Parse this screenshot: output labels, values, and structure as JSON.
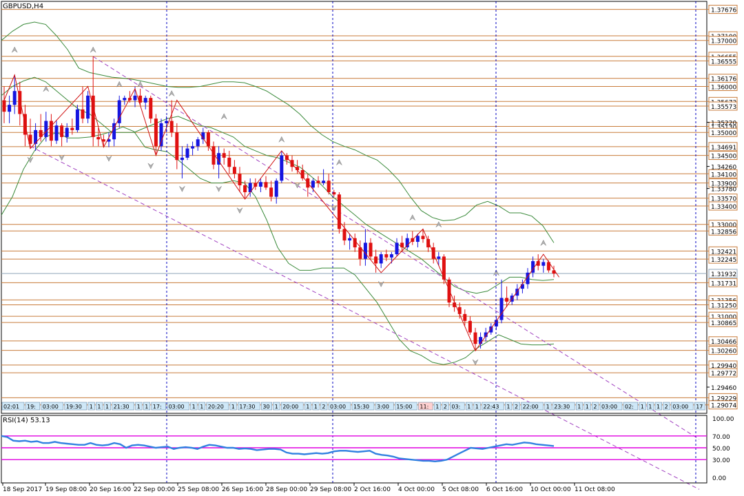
{
  "symbol_label": "GBPUSD,H4",
  "rsi_label": "RSI(14) 53.13",
  "price_axis": {
    "min": 1.2889,
    "max": 1.3785,
    "levels": [
      "1.37676",
      "1.37100",
      "1.37000",
      "1.36655",
      "1.36555",
      "1.36176",
      "1.36000",
      "1.35673",
      "1.35573",
      "1.35130",
      "1.35000",
      "1.34691",
      "1.34500",
      "1.34100",
      "1.33900",
      "1.33570",
      "1.33400",
      "1.33000",
      "1.32856",
      "1.32421",
      "1.32245",
      "1.31731",
      "1.31356",
      "1.31250",
      "1.31000",
      "1.30865",
      "1.30466",
      "1.30260",
      "1.29940",
      "1.29772",
      "1.29229",
      "1.29074"
    ],
    "plain_ticks": [
      "1.35220",
      "1.34260",
      "1.33780",
      "1.29460"
    ],
    "current_price": "1.31932"
  },
  "rsi_axis": {
    "ticks": [
      "100.00",
      "70.00",
      "50.00",
      "30.00",
      "0.00"
    ],
    "levels": [
      70,
      50,
      30
    ],
    "current": 53.13
  },
  "time_labels": [
    "18 Sep 2017",
    "19 Sep 08:00",
    "20 Sep 16:00",
    "22 Sep 00:00",
    "25 Sep 08:00",
    "26 Sep 16:00",
    "28 Sep 00:00",
    "29 Sep 08:00",
    "2 Oct 16:00",
    "4 Oct 00:00",
    "5 Oct 08:00",
    "6 Oct 16:00",
    "10 Oct 00:00",
    "11 Oct 08:00"
  ],
  "session_tags": [
    "02:01",
    "19:",
    "03:00",
    "19:30",
    "1",
    "1",
    "1",
    "21:30",
    "1",
    "1",
    "17:",
    "03:00",
    "1",
    "1",
    "20:20",
    "1",
    "17:30",
    "30",
    "1",
    "20:00",
    "1",
    "1",
    "2",
    "03:00",
    "15:30",
    "3:00",
    "15:00",
    "11:",
    "1",
    "2",
    "03:",
    "1",
    "1",
    "22:43",
    "1",
    "2",
    "22:00",
    "1",
    "23:30",
    "1",
    "1",
    "2",
    "03:00",
    "02:",
    "1",
    "1",
    "1",
    "2",
    "03:00",
    "17",
    "23:30",
    "15:30",
    "0",
    "22:30"
  ],
  "chart_data": {
    "type": "candlestick",
    "symbol": "GBPUSD",
    "timeframe": "H4",
    "colors": {
      "up": "#1515e0",
      "down": "#e01010",
      "zigzag": "#d01010",
      "bands": "#3a8a3a",
      "channel": "#a040c0",
      "levels": "#c87b3a",
      "rsi_line": "#3080e0",
      "rsi_levels": "#e000e0",
      "separator": "#0000c0"
    },
    "ohlc": [
      [
        1.357,
        1.36,
        1.352,
        1.3545
      ],
      [
        1.3545,
        1.358,
        1.352,
        1.356
      ],
      [
        1.356,
        1.3625,
        1.354,
        1.359
      ],
      [
        1.359,
        1.361,
        1.3515,
        1.354
      ],
      [
        1.354,
        1.356,
        1.347,
        1.3495
      ],
      [
        1.3495,
        1.353,
        1.3465,
        1.3475
      ],
      [
        1.3475,
        1.352,
        1.346,
        1.3505
      ],
      [
        1.3505,
        1.354,
        1.348,
        1.349
      ],
      [
        1.349,
        1.3545,
        1.348,
        1.3525
      ],
      [
        1.3525,
        1.354,
        1.347,
        1.3482
      ],
      [
        1.3482,
        1.3525,
        1.3475,
        1.3515
      ],
      [
        1.3515,
        1.352,
        1.347,
        1.349
      ],
      [
        1.349,
        1.352,
        1.3478,
        1.351
      ],
      [
        1.351,
        1.353,
        1.3495,
        1.3505
      ],
      [
        1.3505,
        1.356,
        1.35,
        1.355
      ],
      [
        1.355,
        1.36,
        1.352,
        1.353
      ],
      [
        1.353,
        1.359,
        1.352,
        1.358
      ],
      [
        1.358,
        1.3665,
        1.347,
        1.349
      ],
      [
        1.349,
        1.351,
        1.347,
        1.3485
      ],
      [
        1.3485,
        1.3495,
        1.347,
        1.348
      ],
      [
        1.348,
        1.35,
        1.3468,
        1.3485
      ],
      [
        1.3485,
        1.353,
        1.347,
        1.352
      ],
      [
        1.352,
        1.358,
        1.351,
        1.357
      ],
      [
        1.357,
        1.358,
        1.356,
        1.3575
      ],
      [
        1.3575,
        1.359,
        1.3565,
        1.357
      ],
      [
        1.357,
        1.36,
        1.3555,
        1.358
      ],
      [
        1.358,
        1.3595,
        1.356,
        1.3565
      ],
      [
        1.3565,
        1.358,
        1.355,
        1.3575
      ],
      [
        1.3575,
        1.358,
        1.352,
        1.353
      ],
      [
        1.353,
        1.354,
        1.345,
        1.347
      ],
      [
        1.347,
        1.353,
        1.346,
        1.352
      ],
      [
        1.352,
        1.3535,
        1.35,
        1.3525
      ],
      [
        1.3525,
        1.357,
        1.349,
        1.35
      ],
      [
        1.35,
        1.352,
        1.342,
        1.344
      ],
      [
        1.344,
        1.347,
        1.34,
        1.3445
      ],
      [
        1.3445,
        1.3475,
        1.344,
        1.3465
      ],
      [
        1.3465,
        1.348,
        1.345,
        1.347
      ],
      [
        1.347,
        1.349,
        1.346,
        1.3485
      ],
      [
        1.3485,
        1.351,
        1.3475,
        1.35
      ],
      [
        1.35,
        1.3505,
        1.346,
        1.347
      ],
      [
        1.347,
        1.348,
        1.342,
        1.343
      ],
      [
        1.343,
        1.347,
        1.34,
        1.3455
      ],
      [
        1.3455,
        1.3465,
        1.343,
        1.3445
      ],
      [
        1.3445,
        1.346,
        1.341,
        1.3425
      ],
      [
        1.3425,
        1.344,
        1.34,
        1.341
      ],
      [
        1.341,
        1.3425,
        1.337,
        1.3385
      ],
      [
        1.3385,
        1.3395,
        1.3355,
        1.337
      ],
      [
        1.337,
        1.34,
        1.336,
        1.339
      ],
      [
        1.339,
        1.34,
        1.3375,
        1.3382
      ],
      [
        1.3382,
        1.34,
        1.337,
        1.3392
      ],
      [
        1.3392,
        1.3405,
        1.3375,
        1.338
      ],
      [
        1.338,
        1.3395,
        1.335,
        1.336
      ],
      [
        1.336,
        1.34,
        1.3345,
        1.3395
      ],
      [
        1.3395,
        1.346,
        1.339,
        1.345
      ],
      [
        1.345,
        1.3455,
        1.343,
        1.344
      ],
      [
        1.344,
        1.345,
        1.3415,
        1.3425
      ],
      [
        1.3425,
        1.344,
        1.341,
        1.3418
      ],
      [
        1.3418,
        1.343,
        1.3395,
        1.34
      ],
      [
        1.34,
        1.341,
        1.336,
        1.338
      ],
      [
        1.338,
        1.34,
        1.337,
        1.3395
      ],
      [
        1.3395,
        1.3405,
        1.338,
        1.339
      ],
      [
        1.339,
        1.342,
        1.3385,
        1.3395
      ],
      [
        1.3395,
        1.341,
        1.3365,
        1.337
      ],
      [
        1.337,
        1.3375,
        1.336,
        1.3365
      ],
      [
        1.3365,
        1.337,
        1.328,
        1.329
      ],
      [
        1.329,
        1.3305,
        1.3255,
        1.3265
      ],
      [
        1.3265,
        1.328,
        1.3245,
        1.327
      ],
      [
        1.327,
        1.328,
        1.324,
        1.325
      ],
      [
        1.325,
        1.3265,
        1.321,
        1.3225
      ],
      [
        1.3225,
        1.329,
        1.321,
        1.326
      ],
      [
        1.326,
        1.327,
        1.3225,
        1.323
      ],
      [
        1.323,
        1.3245,
        1.3195,
        1.3215
      ],
      [
        1.3215,
        1.324,
        1.3205,
        1.3235
      ],
      [
        1.3235,
        1.3245,
        1.322,
        1.3228
      ],
      [
        1.3228,
        1.324,
        1.3215,
        1.3235
      ],
      [
        1.3235,
        1.327,
        1.323,
        1.326
      ],
      [
        1.326,
        1.3275,
        1.324,
        1.325
      ],
      [
        1.325,
        1.328,
        1.3245,
        1.327
      ],
      [
        1.327,
        1.3285,
        1.3255,
        1.3262
      ],
      [
        1.3262,
        1.328,
        1.325,
        1.3275
      ],
      [
        1.3275,
        1.329,
        1.326,
        1.3268
      ],
      [
        1.3268,
        1.3275,
        1.324,
        1.325
      ],
      [
        1.325,
        1.326,
        1.3215,
        1.3225
      ],
      [
        1.3225,
        1.324,
        1.321,
        1.323
      ],
      [
        1.323,
        1.3235,
        1.317,
        1.318
      ],
      [
        1.318,
        1.3185,
        1.312,
        1.313
      ],
      [
        1.313,
        1.3145,
        1.311,
        1.312
      ],
      [
        1.312,
        1.313,
        1.3095,
        1.3105
      ],
      [
        1.3105,
        1.3115,
        1.308,
        1.309
      ],
      [
        1.309,
        1.31,
        1.306,
        1.3065
      ],
      [
        1.3065,
        1.3075,
        1.3025,
        1.304
      ],
      [
        1.304,
        1.3065,
        1.303,
        1.3055
      ],
      [
        1.3055,
        1.3075,
        1.3045,
        1.3065
      ],
      [
        1.3065,
        1.3085,
        1.306,
        1.3078
      ],
      [
        1.3078,
        1.31,
        1.307,
        1.3092
      ],
      [
        1.3092,
        1.318,
        1.3085,
        1.314
      ],
      [
        1.314,
        1.3165,
        1.312,
        1.3132
      ],
      [
        1.3132,
        1.315,
        1.3125,
        1.3145
      ],
      [
        1.3145,
        1.317,
        1.3135,
        1.316
      ],
      [
        1.316,
        1.318,
        1.315,
        1.317
      ],
      [
        1.317,
        1.3205,
        1.316,
        1.3195
      ],
      [
        1.3195,
        1.323,
        1.3185,
        1.322
      ],
      [
        1.322,
        1.3235,
        1.32,
        1.321
      ],
      [
        1.321,
        1.3225,
        1.3195,
        1.3218
      ],
      [
        1.3218,
        1.3222,
        1.3195,
        1.32
      ],
      [
        1.32,
        1.321,
        1.3185,
        1.3193
      ]
    ],
    "upper_band": [
      1.37,
      1.372,
      1.3735,
      1.374,
      1.3735,
      1.371,
      1.368,
      1.364,
      1.363,
      1.3625,
      1.362,
      1.3618,
      1.3615,
      1.361,
      1.3605,
      1.36,
      1.3598,
      1.3598,
      1.36,
      1.3605,
      1.361,
      1.361,
      1.3608,
      1.36,
      1.359,
      1.3575,
      1.356,
      1.354,
      1.3515,
      1.3495,
      1.348,
      1.347,
      1.3462,
      1.345,
      1.344,
      1.342,
      1.3395,
      1.336,
      1.333,
      1.3315,
      1.3308,
      1.331,
      1.332,
      1.3342,
      1.335,
      1.334,
      1.3325,
      1.3325,
      1.3318,
      1.3297,
      1.326
    ],
    "middle_band": [
      1.358,
      1.36,
      1.3612,
      1.362,
      1.361,
      1.359,
      1.357,
      1.355,
      1.354,
      1.352,
      1.35,
      1.35,
      1.35,
      1.351,
      1.352,
      1.353,
      1.3535,
      1.3525,
      1.3515,
      1.351,
      1.35,
      1.349,
      1.347,
      1.346,
      1.345,
      1.3445,
      1.3435,
      1.3425,
      1.3405,
      1.3385,
      1.336,
      1.334,
      1.332,
      1.33,
      1.3285,
      1.327,
      1.3255,
      1.324,
      1.3225,
      1.3205,
      1.3185,
      1.3165,
      1.3155,
      1.315,
      1.3155,
      1.317,
      1.3185,
      1.3185,
      1.318,
      1.3178,
      1.318
    ],
    "lower_band": [
      1.332,
      1.336,
      1.342,
      1.346,
      1.349,
      1.35,
      1.3488,
      1.3488,
      1.349,
      1.3495,
      1.3502,
      1.3512,
      1.3502,
      1.3468,
      1.3462,
      1.3458,
      1.344,
      1.342,
      1.34,
      1.339,
      1.339,
      1.3395,
      1.339,
      1.336,
      1.331,
      1.325,
      1.3215,
      1.32,
      1.32,
      1.3205,
      1.3205,
      1.3205,
      1.319,
      1.316,
      1.313,
      1.309,
      1.305,
      1.3025,
      1.3015,
      1.3,
      1.2995,
      1.3,
      1.301,
      1.303,
      1.3045,
      1.306,
      1.305,
      1.304,
      1.3038,
      1.3038,
      1.304
    ],
    "zigzag": [
      [
        0,
        1.357
      ],
      [
        2,
        1.3625
      ],
      [
        5,
        1.3465
      ],
      [
        16,
        1.36
      ],
      [
        19,
        1.3468
      ],
      [
        25,
        1.3595
      ],
      [
        29,
        1.345
      ],
      [
        33,
        1.357
      ],
      [
        46,
        1.3355
      ],
      [
        53,
        1.346
      ],
      [
        72,
        1.3195
      ],
      [
        80,
        1.329
      ],
      [
        90,
        1.3025
      ],
      [
        103,
        1.3235
      ],
      [
        106,
        1.3185
      ]
    ],
    "fractals_up": [
      [
        2,
        1.3665
      ],
      [
        8,
        1.358
      ],
      [
        17,
        1.3665
      ],
      [
        22,
        1.359
      ],
      [
        26,
        1.359
      ],
      [
        32,
        1.357
      ],
      [
        42,
        1.352
      ],
      [
        53,
        1.347
      ],
      [
        64,
        1.342
      ],
      [
        78,
        1.33
      ],
      [
        83,
        1.3285
      ],
      [
        94,
        1.318
      ],
      [
        103,
        1.3245
      ]
    ],
    "fractals_down": [
      [
        5,
        1.3455
      ],
      [
        11,
        1.346
      ],
      [
        20,
        1.3458
      ],
      [
        28,
        1.3442
      ],
      [
        34,
        1.3392
      ],
      [
        41,
        1.3392
      ],
      [
        45,
        1.3345
      ],
      [
        56,
        1.34
      ],
      [
        63,
        1.335
      ],
      [
        72,
        1.3185
      ],
      [
        90,
        1.3015
      ]
    ],
    "channel_upper": [
      [
        17,
        1.3665
      ],
      [
        106,
        1.3025
      ]
    ],
    "channel_lower": [
      [
        5,
        1.347
      ],
      [
        106,
        1.288
      ]
    ],
    "rsi": [
      70,
      68,
      62,
      61,
      62,
      60,
      61,
      58,
      58,
      60,
      58,
      57,
      56,
      55,
      55,
      58,
      55,
      54,
      55,
      58,
      56,
      50,
      54,
      55,
      54,
      52,
      50,
      51,
      52,
      48,
      50,
      51,
      50,
      48,
      52,
      55,
      54,
      52,
      50,
      50,
      48,
      49,
      48,
      46,
      47,
      48,
      48,
      47,
      42,
      40,
      40,
      39,
      40,
      41,
      40,
      41,
      44,
      45,
      45,
      44,
      43,
      44,
      45,
      40,
      38,
      37,
      35,
      32,
      31,
      30,
      29,
      28,
      28,
      27,
      28,
      30,
      35,
      40,
      45,
      50,
      49,
      48,
      50,
      52,
      54,
      56,
      55,
      57,
      59,
      58,
      56,
      55,
      54,
      53
    ]
  }
}
